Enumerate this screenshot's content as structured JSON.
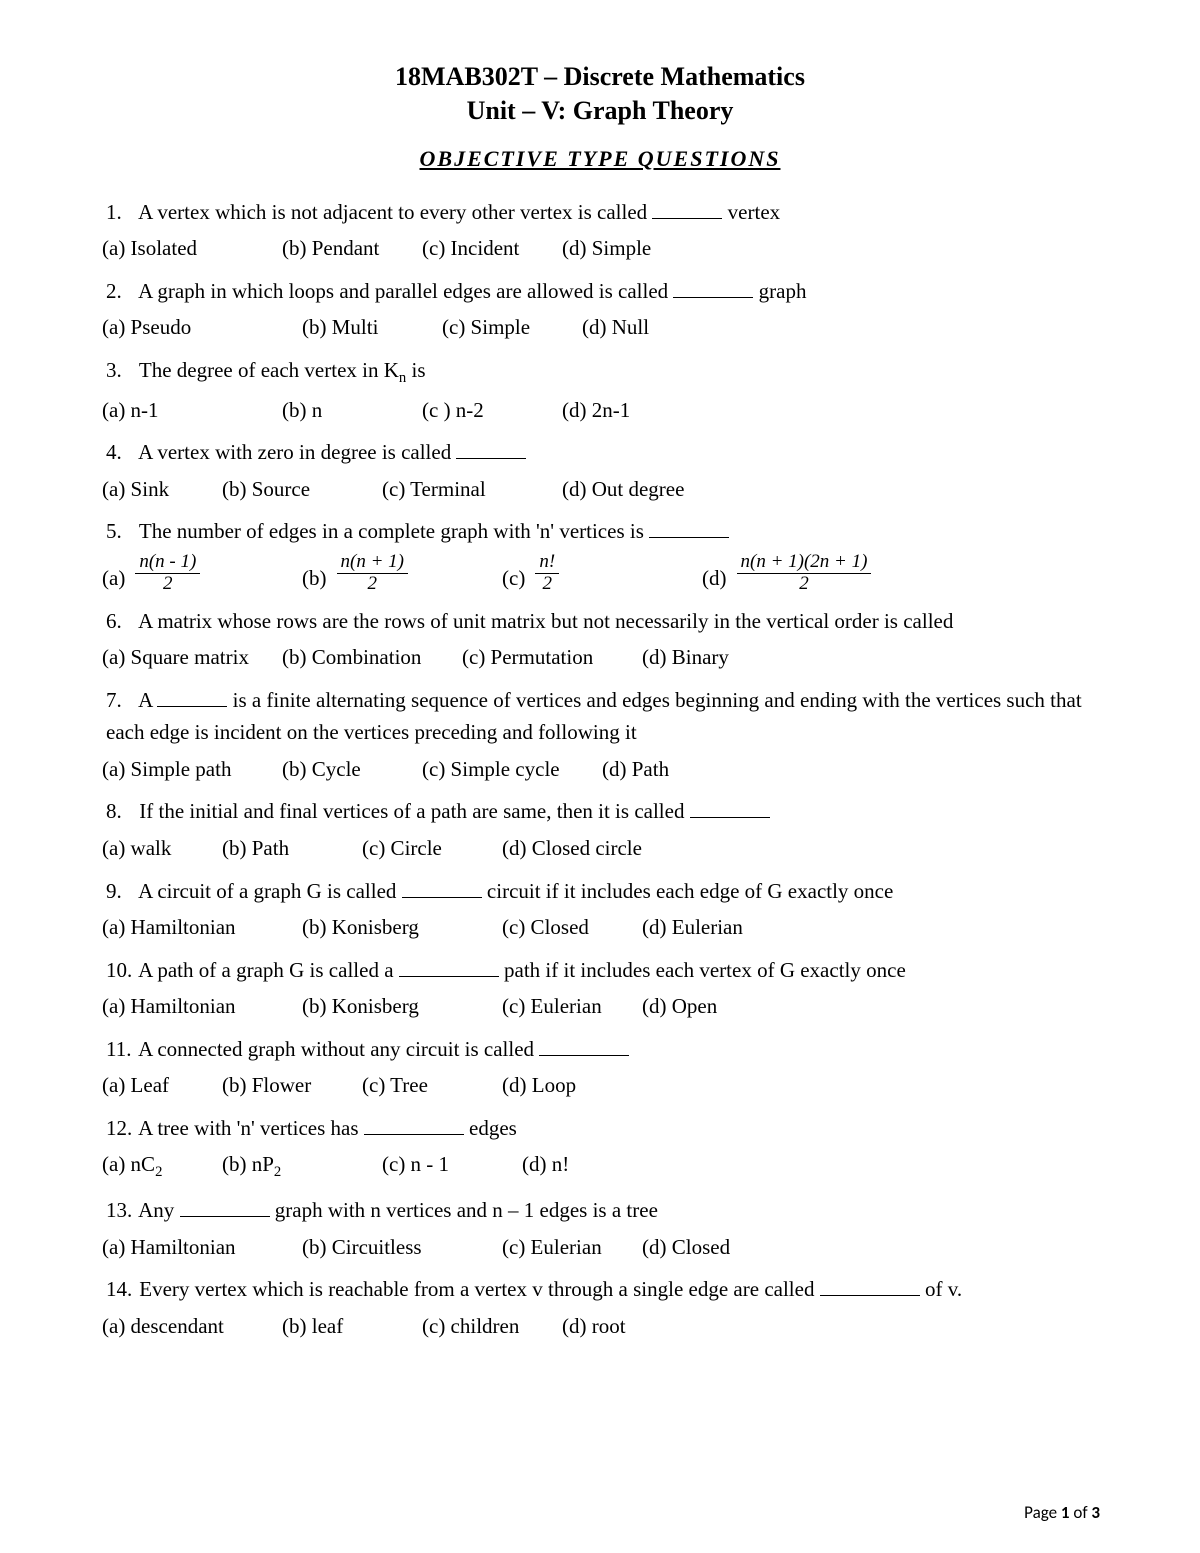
{
  "header": {
    "course": "18MAB302T – Discrete Mathematics",
    "unit": "Unit – V: Graph Theory",
    "section": "OBJECTIVE TYPE QUESTIONS"
  },
  "questions": [
    {
      "n": "1.",
      "pre": "A vertex which is not adjacent to every other vertex is called ",
      "post": " vertex",
      "blank": "b60",
      "options": [
        {
          "l": "(a)",
          "t": "Isolated",
          "w": "w1"
        },
        {
          "l": "(b)",
          "t": "Pendant",
          "w": "w2"
        },
        {
          "l": "(c)",
          "t": "Incident",
          "w": "w2"
        },
        {
          "l": "(d)",
          "t": "Simple",
          "w": "wa"
        }
      ]
    },
    {
      "n": "2.",
      "pre": "A graph in which loops and parallel edges are allowed is called ",
      "post": " graph",
      "blank": "b80",
      "options": [
        {
          "l": "(a)",
          "t": "Pseudo",
          "w": "w4"
        },
        {
          "l": "(b)",
          "t": "Multi",
          "w": "w2"
        },
        {
          "l": "(c)",
          "t": "Simple",
          "w": "w2"
        },
        {
          "l": "(d)",
          "t": "Null",
          "w": "wa"
        }
      ]
    },
    {
      "n": "3.",
      "raw": "The degree of each vertex in K<span class=\"sub\">n</span> is",
      "options": [
        {
          "l": "(a)",
          "t": "n-1",
          "w": "w1"
        },
        {
          "l": "(b)",
          "t": "n",
          "w": "w2"
        },
        {
          "l": "(c )",
          "t": "n-2",
          "w": "w2"
        },
        {
          "l": "(d)",
          "t": "2n-1",
          "w": "wa"
        }
      ]
    },
    {
      "n": "4.",
      "pre": "A vertex with zero in degree is called ",
      "blank": "b60",
      "options": [
        {
          "l": "(a)",
          "t": "Sink",
          "w": "w5"
        },
        {
          "l": "(b)",
          "t": "Source",
          "w": "w3"
        },
        {
          "l": "(c)",
          "t": "Terminal",
          "w": "w1"
        },
        {
          "l": "(d)",
          "t": "Out degree",
          "w": "wa"
        }
      ]
    },
    {
      "n": "5.",
      "pre": "The number of edges in a complete graph with 'n' vertices is ",
      "blank": "b80",
      "mathOptions": [
        {
          "l": "(a)",
          "num": "n(n - 1)",
          "den": "2"
        },
        {
          "l": "(b)",
          "num": "n(n + 1)",
          "den": "2"
        },
        {
          "l": "(c)",
          "num": "n!",
          "den": "2"
        },
        {
          "l": "(d)",
          "num": "n(n + 1)(2n + 1)",
          "den": "2"
        }
      ]
    },
    {
      "n": "6.",
      "pre": "A matrix whose rows are the rows of unit matrix but not necessarily in the vertical order is called",
      "options": [
        {
          "l": "(a)",
          "t": "Square matrix",
          "w": "w1"
        },
        {
          "l": "(b)",
          "t": "Combination",
          "w": "w1"
        },
        {
          "l": "(c)",
          "t": "Permutation",
          "w": "w1"
        },
        {
          "l": "(d)",
          "t": "Binary",
          "w": "wa"
        }
      ]
    },
    {
      "n": "7.",
      "raw": "A <span class=\"blank b60\"></span> is a finite alternating sequence of vertices and edges beginning and ending with the vertices such that each edge is incident on the vertices preceding and following it",
      "options": [
        {
          "l": "(a)",
          "t": "Simple path",
          "w": "w1"
        },
        {
          "l": "(b)",
          "t": "Cycle",
          "w": "w2"
        },
        {
          "l": "(c)",
          "t": "Simple cycle",
          "w": "w1"
        },
        {
          "l": "(d)",
          "t": "Path",
          "w": "wa"
        }
      ]
    },
    {
      "n": "8.",
      "pre": "If the initial and final vertices of a path are same, then it is called ",
      "blank": "b80",
      "options": [
        {
          "l": "(a)",
          "t": "walk",
          "w": "w5"
        },
        {
          "l": "(b)",
          "t": "Path",
          "w": "w2"
        },
        {
          "l": "(c)",
          "t": "Circle",
          "w": "w2"
        },
        {
          "l": "(d)",
          "t": "Closed circle",
          "w": "wa"
        }
      ]
    },
    {
      "n": "9.",
      "raw": "A circuit of a graph G is called <span class=\"blank b80\"></span> circuit if it includes each edge of G exactly once",
      "options": [
        {
          "l": "(a)",
          "t": "Hamiltonian",
          "w": "w4"
        },
        {
          "l": "(b)",
          "t": "Konisberg",
          "w": "w4"
        },
        {
          "l": "(c)",
          "t": "Closed",
          "w": "w2"
        },
        {
          "l": "(d)",
          "t": "Eulerian",
          "w": "wa"
        }
      ]
    },
    {
      "n": "10.",
      "raw": "A path of a graph G is called a <span class=\"blank b100\"></span> path if it includes each vertex of G exactly once",
      "options": [
        {
          "l": "(a)",
          "t": "Hamiltonian",
          "w": "w4"
        },
        {
          "l": "(b)",
          "t": "Konisberg",
          "w": "w4"
        },
        {
          "l": "(c)",
          "t": "Eulerian",
          "w": "w2"
        },
        {
          "l": "(d)",
          "t": "Open",
          "w": "wa"
        }
      ]
    },
    {
      "n": "11.",
      "pre": "A connected graph without any circuit is called ",
      "blank": "b90",
      "options": [
        {
          "l": "(a)",
          "t": "Leaf",
          "w": "w5"
        },
        {
          "l": "(b)",
          "t": "Flower",
          "w": "w2"
        },
        {
          "l": "(c)",
          "t": "Tree",
          "w": "w2"
        },
        {
          "l": "(d)",
          "t": "Loop",
          "w": "wa"
        }
      ]
    },
    {
      "n": "12.",
      "raw": "A tree with 'n' vertices has <span class=\"blank b100\"></span> edges",
      "options": [
        {
          "l": "(a)",
          "raw": "nC<span class=\"sub\">2</span>",
          "w": "w5"
        },
        {
          "l": "(b)",
          "raw": "nP<span class=\"sub\">2</span>",
          "w": "w3"
        },
        {
          "l": "(c)",
          "t": "n - 1",
          "w": "w2"
        },
        {
          "l": "(d)",
          "t": "n!",
          "w": "wa"
        }
      ]
    },
    {
      "n": "13.",
      "raw": "Any <span class=\"blank b90\"></span> graph with n vertices and n – 1 edges is a tree",
      "options": [
        {
          "l": "(a)",
          "t": "Hamiltonian",
          "w": "w4"
        },
        {
          "l": "(b)",
          "t": "Circuitless",
          "w": "w4"
        },
        {
          "l": "(c)",
          "t": "Eulerian",
          "w": "w2"
        },
        {
          "l": "(d)",
          "t": "Closed",
          "w": "wa"
        }
      ]
    },
    {
      "n": "14.",
      "raw": "Every vertex which is reachable from a vertex v through a single edge are called <span class=\"blank b100\"></span> of v.",
      "options": [
        {
          "l": "(a)",
          "t": "descendant",
          "w": "w1"
        },
        {
          "l": "(b)",
          "t": "leaf",
          "w": "w2"
        },
        {
          "l": "(c)",
          "t": "children",
          "w": "w2"
        },
        {
          "l": "(d)",
          "t": "root",
          "w": "wa"
        }
      ]
    }
  ],
  "footer": {
    "pre": "Page ",
    "cur": "1",
    "mid": " of ",
    "total": "3"
  }
}
